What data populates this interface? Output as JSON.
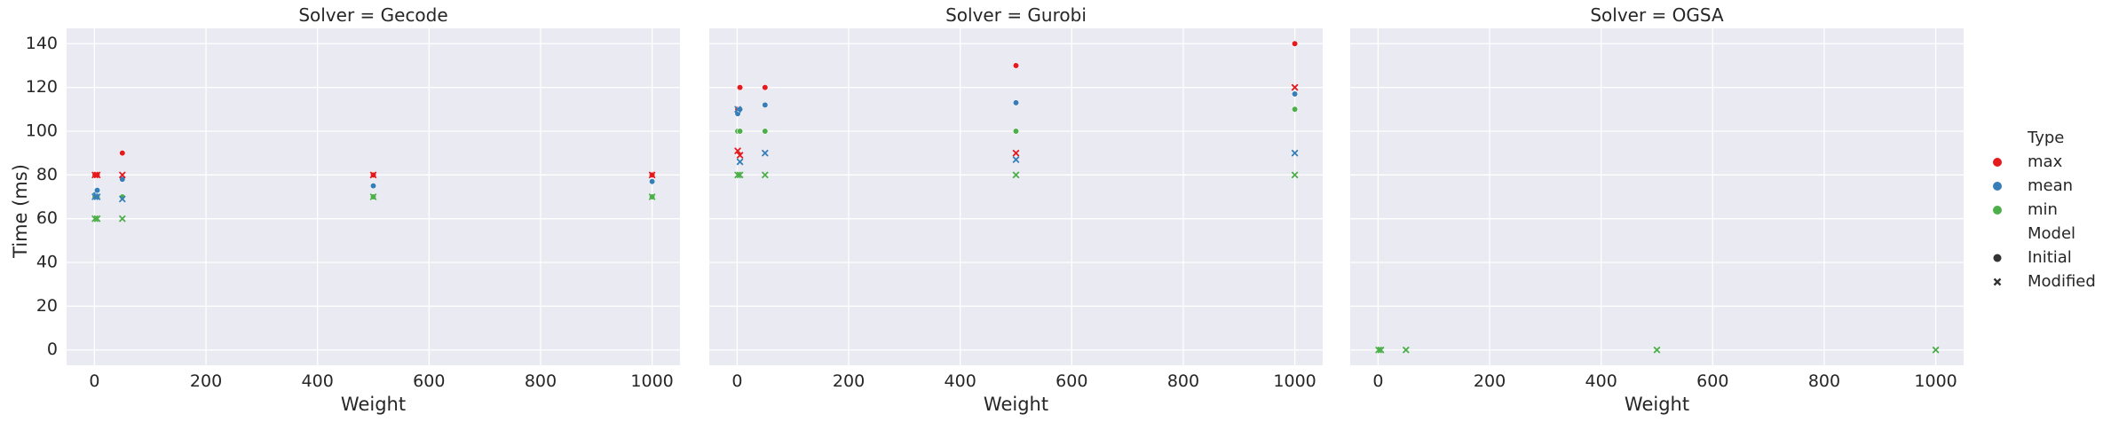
{
  "chart_data": {
    "type": "scatter",
    "ylabel": "Time (ms)",
    "xlabel": "Weight",
    "xlim": [
      -50,
      1050
    ],
    "ylim": [
      -7,
      147
    ],
    "xticks": [
      0,
      200,
      400,
      600,
      800,
      1000
    ],
    "yticks": [
      0,
      20,
      40,
      60,
      80,
      100,
      120,
      140
    ],
    "grid": true,
    "legend": {
      "placement": "right",
      "type_title": "Type",
      "types": [
        {
          "name": "max",
          "color": "#e41a1c"
        },
        {
          "name": "mean",
          "color": "#377eb8"
        },
        {
          "name": "min",
          "color": "#4daf4a"
        }
      ],
      "model_title": "Model",
      "models": [
        {
          "name": "Initial",
          "marker": "circle"
        },
        {
          "name": "Modified",
          "marker": "x"
        }
      ]
    },
    "panels": [
      {
        "title": "Solver = Gecode",
        "series": [
          {
            "type": "max",
            "model": "Initial",
            "x": [
              1,
              5,
              50,
              500,
              1000
            ],
            "y": [
              80,
              80,
              90,
              80,
              80
            ]
          },
          {
            "type": "mean",
            "model": "Initial",
            "x": [
              1,
              5,
              50,
              500,
              1000
            ],
            "y": [
              71,
              73,
              78,
              75,
              77
            ]
          },
          {
            "type": "min",
            "model": "Initial",
            "x": [
              1,
              5,
              50,
              500,
              1000
            ],
            "y": [
              70,
              70,
              70,
              70,
              70
            ]
          },
          {
            "type": "max",
            "model": "Modified",
            "x": [
              1,
              5,
              50,
              500,
              1000
            ],
            "y": [
              80,
              80,
              80,
              80,
              80
            ]
          },
          {
            "type": "mean",
            "model": "Modified",
            "x": [
              1,
              5,
              50
            ],
            "y": [
              70,
              70,
              69
            ]
          },
          {
            "type": "min",
            "model": "Modified",
            "x": [
              1,
              5,
              50,
              500,
              1000
            ],
            "y": [
              60,
              60,
              60,
              70,
              70
            ]
          }
        ]
      },
      {
        "title": "Solver = Gurobi",
        "series": [
          {
            "type": "max",
            "model": "Initial",
            "x": [
              1,
              5,
              50,
              500,
              1000
            ],
            "y": [
              110,
              120,
              120,
              130,
              140
            ]
          },
          {
            "type": "mean",
            "model": "Initial",
            "x": [
              1,
              5,
              50,
              500,
              1000
            ],
            "y": [
              108,
              110,
              112,
              113,
              117
            ]
          },
          {
            "type": "min",
            "model": "Initial",
            "x": [
              1,
              5,
              50,
              500,
              1000
            ],
            "y": [
              100,
              100,
              100,
              100,
              110
            ]
          },
          {
            "type": "max",
            "model": "Modified",
            "x": [
              1,
              5,
              500,
              1000
            ],
            "y": [
              91,
              89,
              90,
              120
            ]
          },
          {
            "type": "mean",
            "model": "Modified",
            "x": [
              1,
              5,
              50,
              500,
              1000
            ],
            "y": [
              110,
              86,
              90,
              87,
              90
            ]
          },
          {
            "type": "min",
            "model": "Modified",
            "x": [
              1,
              5,
              50,
              500,
              1000
            ],
            "y": [
              80,
              80,
              80,
              80,
              80
            ]
          }
        ]
      },
      {
        "title": "Solver = OGSA",
        "series": [
          {
            "type": "min",
            "model": "Modified",
            "x": [
              1,
              5,
              50,
              500,
              1000
            ],
            "y": [
              0,
              0,
              0,
              0,
              0
            ]
          }
        ]
      }
    ]
  }
}
